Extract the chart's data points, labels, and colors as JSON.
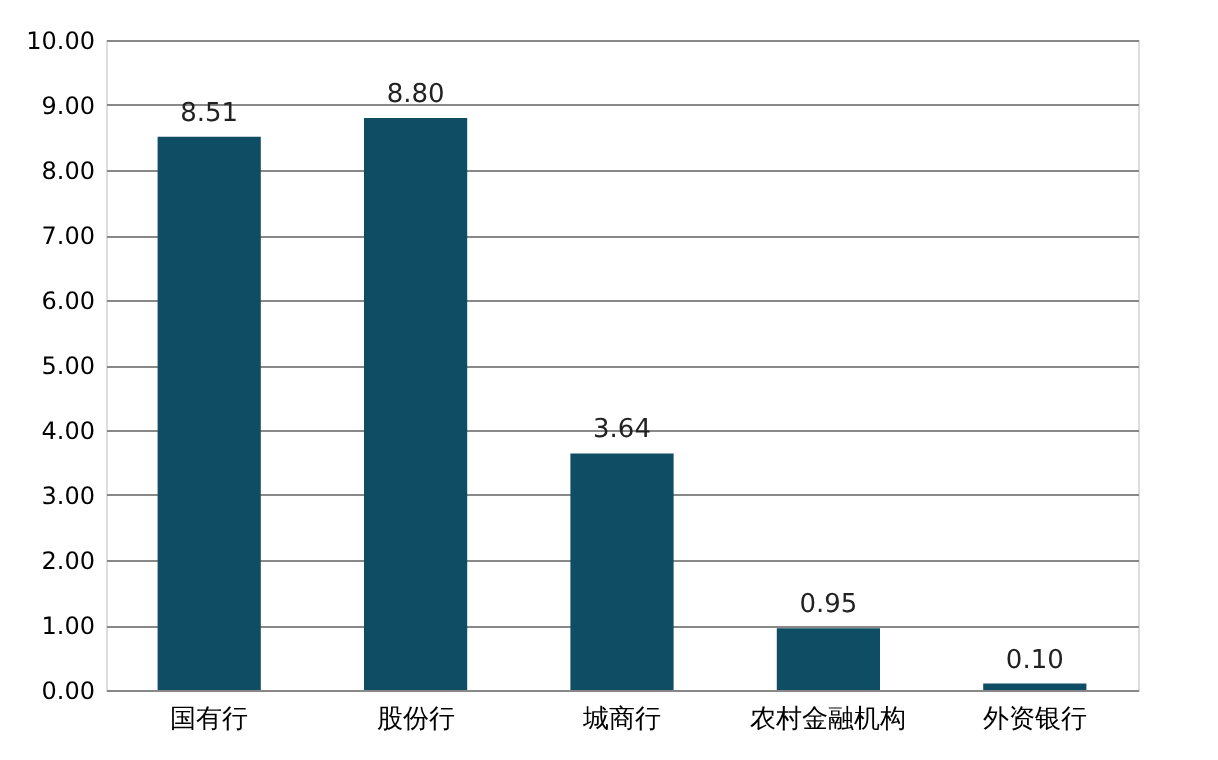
{
  "chart_data": {
    "type": "bar",
    "categories": [
      "国有行",
      "股份行",
      "城商行",
      "农村金融机构",
      "外资银行"
    ],
    "values": [
      8.51,
      8.8,
      3.64,
      0.95,
      0.1
    ],
    "value_labels": [
      "8.51",
      "8.80",
      "3.64",
      "0.95",
      "0.10"
    ],
    "color": "#0e4d64",
    "ylim": [
      0,
      10
    ],
    "yticks": [
      {
        "value": 0,
        "label": "0.00"
      },
      {
        "value": 1,
        "label": "1.00"
      },
      {
        "value": 2,
        "label": "2.00"
      },
      {
        "value": 3,
        "label": "3.00"
      },
      {
        "value": 4,
        "label": "4.00"
      },
      {
        "value": 5,
        "label": "5.00"
      },
      {
        "value": 6,
        "label": "6.00"
      },
      {
        "value": 7,
        "label": "7.00"
      },
      {
        "value": 8,
        "label": "8.00"
      },
      {
        "value": 9,
        "label": "9.00"
      },
      {
        "value": 10,
        "label": "10.00"
      }
    ],
    "grid": "y"
  }
}
